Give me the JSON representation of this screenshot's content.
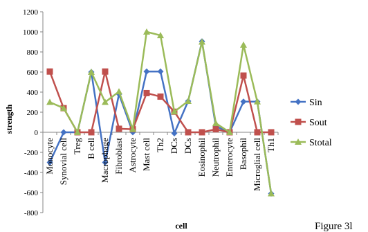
{
  "chart_data": {
    "type": "line",
    "xlabel": "cell",
    "ylabel": "strength",
    "ylim": [
      -800,
      1200
    ],
    "yticks": [
      -800,
      -600,
      -400,
      -200,
      0,
      200,
      400,
      600,
      800,
      1000,
      1200
    ],
    "grid": false,
    "legend_position": "right",
    "categories": [
      "Monocyte",
      "Synovial cell",
      "Treg",
      "B cell",
      "Macrophage",
      "Fibroblast",
      "Astrocyte",
      "Mast cell",
      "Th2",
      "DCs",
      "DCs",
      "Eosinophil",
      "Neutrophil",
      "Enterocyte",
      "Basophil",
      "Microglial cell",
      "Th1"
    ],
    "series": [
      {
        "name": "Sin",
        "color": "#4472C4",
        "marker": "diamond",
        "values": [
          -300,
          0,
          0,
          600,
          -300,
          380,
          0,
          605,
          605,
          -10,
          310,
          905,
          60,
          0,
          305,
          305,
          -610
        ]
      },
      {
        "name": "Sout",
        "color": "#C0504D",
        "marker": "square",
        "values": [
          605,
          240,
          0,
          0,
          605,
          35,
          30,
          390,
          355,
          205,
          0,
          0,
          30,
          0,
          565,
          0,
          0
        ]
      },
      {
        "name": "Stotal",
        "color": "#9BBB59",
        "marker": "triangle",
        "values": [
          300,
          240,
          0,
          600,
          300,
          405,
          30,
          1000,
          965,
          205,
          310,
          900,
          90,
          0,
          870,
          305,
          -610
        ]
      }
    ]
  },
  "caption": "Figure 3l"
}
